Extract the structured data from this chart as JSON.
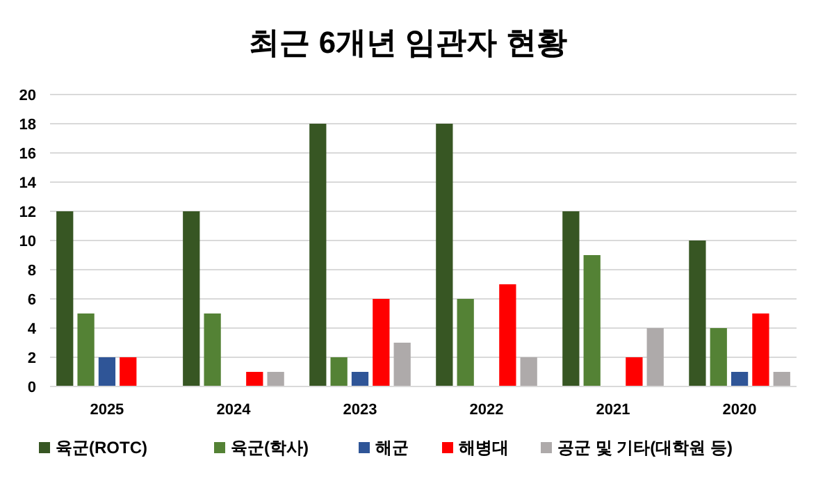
{
  "chart_data": {
    "type": "bar",
    "title": "최근 6개년 임관자 현황",
    "categories": [
      "2025",
      "2024",
      "2023",
      "2022",
      "2021",
      "2020"
    ],
    "series": [
      {
        "name": "육군(ROTC)",
        "color": "#375623",
        "values": [
          12,
          12,
          18,
          18,
          12,
          10
        ]
      },
      {
        "name": "육군(학사)",
        "color": "#548235",
        "values": [
          5,
          5,
          2,
          6,
          9,
          4
        ]
      },
      {
        "name": "해군",
        "color": "#2f5597",
        "values": [
          2,
          0,
          1,
          0,
          0,
          1
        ]
      },
      {
        "name": "해병대",
        "color": "#ff0000",
        "values": [
          2,
          1,
          6,
          7,
          2,
          5
        ]
      },
      {
        "name": "공군 및 기타(대학원 등)",
        "color": "#aeaaaa",
        "values": [
          0,
          1,
          3,
          2,
          4,
          1
        ]
      }
    ],
    "ylim": [
      0,
      20
    ],
    "yticks": [
      0,
      2,
      4,
      6,
      8,
      10,
      12,
      14,
      16,
      18,
      20
    ],
    "grid": "y",
    "legend": "bottom"
  }
}
